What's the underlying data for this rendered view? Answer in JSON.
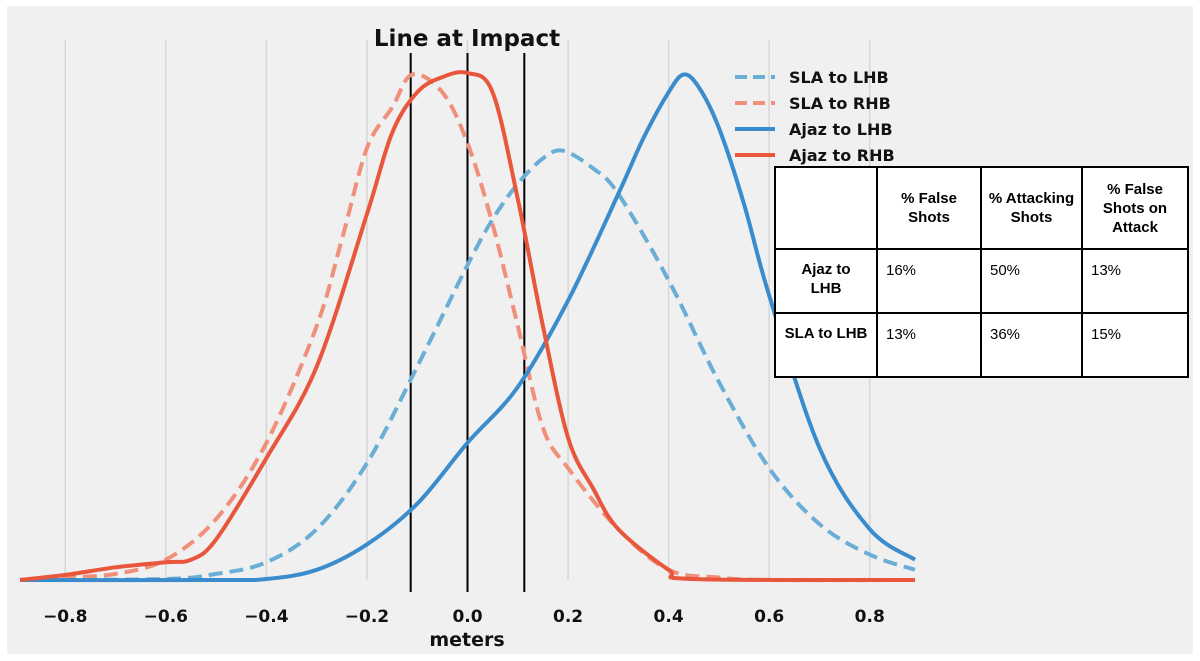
{
  "chart_data": {
    "type": "line",
    "title": "Line at Impact",
    "xlabel": "meters",
    "ylabel": "",
    "xlim": [
      -0.89,
      0.89
    ],
    "ylim": [
      0,
      1.0
    ],
    "xticks": [
      -0.8,
      -0.6,
      -0.4,
      -0.2,
      0.0,
      0.2,
      0.4,
      0.6,
      0.8
    ],
    "xtick_labels": [
      "−0.8",
      "−0.6",
      "−0.4",
      "−0.2",
      "0.0",
      "0.2",
      "0.4",
      "0.6",
      "0.8"
    ],
    "grid": "vertical",
    "legend_position": "top-right",
    "vlines": [
      -0.113,
      0.0,
      0.113
    ],
    "series": [
      {
        "name": "SLA to LHB",
        "color": "#6aaed6",
        "style": "dashed",
        "x": [
          -0.89,
          -0.6,
          -0.5,
          -0.4,
          -0.3,
          -0.2,
          -0.1,
          0.0,
          0.05,
          0.1,
          0.15,
          0.19,
          0.25,
          0.3,
          0.4,
          0.5,
          0.6,
          0.7,
          0.8,
          0.89
        ],
        "y": [
          0.0,
          0.002,
          0.012,
          0.035,
          0.1,
          0.23,
          0.42,
          0.62,
          0.71,
          0.78,
          0.83,
          0.845,
          0.81,
          0.76,
          0.59,
          0.39,
          0.22,
          0.11,
          0.05,
          0.02
        ]
      },
      {
        "name": "SLA to RHB",
        "color": "#f0907a",
        "style": "dashed",
        "x": [
          -0.89,
          -0.8,
          -0.7,
          -0.6,
          -0.5,
          -0.4,
          -0.3,
          -0.25,
          -0.2,
          -0.15,
          -0.11,
          -0.05,
          0.0,
          0.05,
          0.1,
          0.15,
          0.2,
          0.3,
          0.4,
          0.5,
          0.6,
          0.89
        ],
        "y": [
          0.0,
          0.005,
          0.012,
          0.04,
          0.12,
          0.27,
          0.5,
          0.67,
          0.85,
          0.93,
          0.995,
          0.96,
          0.86,
          0.7,
          0.5,
          0.3,
          0.22,
          0.1,
          0.02,
          0.005,
          0.0,
          0.0
        ]
      },
      {
        "name": "Ajaz to LHB",
        "color": "#3a8ccc",
        "style": "solid",
        "x": [
          -0.89,
          -0.5,
          -0.4,
          -0.3,
          -0.2,
          -0.1,
          0.0,
          0.1,
          0.2,
          0.3,
          0.35,
          0.4,
          0.43,
          0.46,
          0.5,
          0.55,
          0.6,
          0.7,
          0.8,
          0.89
        ],
        "y": [
          0.0,
          0.0,
          0.002,
          0.02,
          0.07,
          0.15,
          0.27,
          0.38,
          0.55,
          0.76,
          0.87,
          0.96,
          0.995,
          0.97,
          0.89,
          0.74,
          0.56,
          0.26,
          0.1,
          0.04
        ]
      },
      {
        "name": "Ajaz to RHB",
        "color": "#e8563c",
        "style": "solid",
        "x": [
          -0.89,
          -0.8,
          -0.7,
          -0.6,
          -0.55,
          -0.5,
          -0.4,
          -0.3,
          -0.2,
          -0.15,
          -0.1,
          -0.05,
          0.0,
          0.05,
          0.1,
          0.15,
          0.2,
          0.25,
          0.3,
          0.4,
          0.45,
          0.89
        ],
        "y": [
          0.0,
          0.01,
          0.025,
          0.035,
          0.04,
          0.08,
          0.24,
          0.42,
          0.72,
          0.88,
          0.96,
          0.99,
          0.998,
          0.96,
          0.75,
          0.5,
          0.28,
          0.18,
          0.1,
          0.02,
          0.002,
          0.0
        ]
      }
    ]
  },
  "table": {
    "headers": [
      "",
      "% False Shots",
      "% Attacking Shots",
      "% False Shots on Attack"
    ],
    "rows": [
      [
        "Ajaz to LHB",
        "16%",
        "50%",
        "13%"
      ],
      [
        "SLA to LHB",
        "13%",
        "36%",
        "15%"
      ]
    ]
  }
}
